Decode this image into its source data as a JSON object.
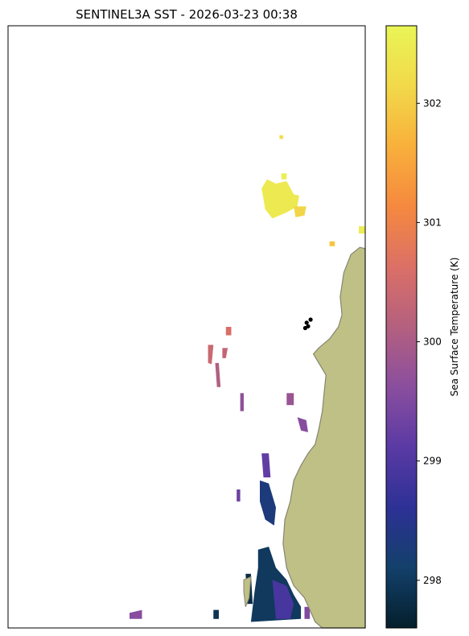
{
  "chart_data": {
    "type": "heatmap",
    "title": "SENTINEL3A SST - 2026-03-23 00:38",
    "colorbar": {
      "label": "Sea Surface Temperature (K)",
      "range": [
        297.6,
        302.65
      ],
      "ticks": [
        "298",
        "299",
        "300",
        "301",
        "302"
      ],
      "tick_values": [
        298,
        299,
        300,
        301,
        302
      ],
      "colormap": [
        "#041f2c",
        "#13406a",
        "#2d3196",
        "#5a3aa4",
        "#8a4e9e",
        "#b4607f",
        "#db7066",
        "#f5893f",
        "#f8b03b",
        "#f2d94a",
        "#e9f556"
      ]
    },
    "land_color": "#bfc085",
    "coast_color": "#858573",
    "marker_color": "#000000",
    "patches": [
      {
        "k": 302.45,
        "pts": [
          [
            0.71,
            0.27
          ],
          [
            0.725,
            0.255
          ],
          [
            0.75,
            0.262
          ],
          [
            0.78,
            0.258
          ],
          [
            0.8,
            0.28
          ],
          [
            0.815,
            0.282
          ],
          [
            0.81,
            0.3
          ],
          [
            0.78,
            0.31
          ],
          [
            0.74,
            0.32
          ],
          [
            0.72,
            0.305
          ]
        ]
      },
      {
        "k": 302.1,
        "pts": [
          [
            0.8,
            0.3
          ],
          [
            0.835,
            0.3
          ],
          [
            0.83,
            0.315
          ],
          [
            0.805,
            0.318
          ]
        ]
      },
      {
        "k": 302.55,
        "pts": [
          [
            0.765,
            0.245
          ],
          [
            0.78,
            0.245
          ],
          [
            0.78,
            0.255
          ],
          [
            0.765,
            0.255
          ]
        ]
      },
      {
        "k": 301.9,
        "pts": [
          [
            0.9,
            0.358
          ],
          [
            0.915,
            0.358
          ],
          [
            0.915,
            0.366
          ],
          [
            0.9,
            0.366
          ]
        ]
      },
      {
        "k": 302.5,
        "pts": [
          [
            0.982,
            0.333
          ],
          [
            1.0,
            0.333
          ],
          [
            1.0,
            0.345
          ],
          [
            0.982,
            0.345
          ]
        ]
      },
      {
        "k": 302.2,
        "pts": [
          [
            0.76,
            0.182
          ],
          [
            0.77,
            0.182
          ],
          [
            0.77,
            0.188
          ],
          [
            0.76,
            0.188
          ]
        ]
      },
      {
        "k": 300.6,
        "pts": [
          [
            0.61,
            0.5
          ],
          [
            0.625,
            0.5
          ],
          [
            0.625,
            0.514
          ],
          [
            0.61,
            0.514
          ]
        ]
      },
      {
        "k": 300.4,
        "pts": [
          [
            0.56,
            0.53
          ],
          [
            0.575,
            0.53
          ],
          [
            0.57,
            0.562
          ],
          [
            0.56,
            0.56
          ]
        ]
      },
      {
        "k": 300.3,
        "pts": [
          [
            0.6,
            0.535
          ],
          [
            0.615,
            0.535
          ],
          [
            0.61,
            0.552
          ],
          [
            0.6,
            0.552
          ]
        ]
      },
      {
        "k": 300.1,
        "pts": [
          [
            0.58,
            0.56
          ],
          [
            0.59,
            0.56
          ],
          [
            0.595,
            0.6
          ],
          [
            0.585,
            0.6
          ]
        ]
      },
      {
        "k": 299.8,
        "pts": [
          [
            0.78,
            0.61
          ],
          [
            0.8,
            0.61
          ],
          [
            0.8,
            0.63
          ],
          [
            0.78,
            0.63
          ]
        ]
      },
      {
        "k": 299.6,
        "pts": [
          [
            0.81,
            0.65
          ],
          [
            0.835,
            0.655
          ],
          [
            0.84,
            0.675
          ],
          [
            0.82,
            0.672
          ]
        ]
      },
      {
        "k": 299.7,
        "pts": [
          [
            0.65,
            0.61
          ],
          [
            0.66,
            0.61
          ],
          [
            0.66,
            0.64
          ],
          [
            0.65,
            0.64
          ]
        ]
      },
      {
        "k": 299.2,
        "pts": [
          [
            0.71,
            0.71
          ],
          [
            0.73,
            0.71
          ],
          [
            0.735,
            0.75
          ],
          [
            0.715,
            0.75
          ]
        ]
      },
      {
        "k": 298.3,
        "pts": [
          [
            0.705,
            0.755
          ],
          [
            0.73,
            0.76
          ],
          [
            0.75,
            0.8
          ],
          [
            0.745,
            0.83
          ],
          [
            0.72,
            0.82
          ],
          [
            0.705,
            0.79
          ]
        ]
      },
      {
        "k": 298.0,
        "pts": [
          [
            0.7,
            0.87
          ],
          [
            0.73,
            0.865
          ],
          [
            0.75,
            0.9
          ],
          [
            0.78,
            0.92
          ],
          [
            0.8,
            0.945
          ],
          [
            0.82,
            0.965
          ],
          [
            0.82,
            0.985
          ],
          [
            0.68,
            0.99
          ],
          [
            0.69,
            0.94
          ],
          [
            0.7,
            0.9
          ]
        ]
      },
      {
        "k": 298.9,
        "pts": [
          [
            0.74,
            0.92
          ],
          [
            0.78,
            0.93
          ],
          [
            0.8,
            0.96
          ],
          [
            0.79,
            0.985
          ],
          [
            0.75,
            0.985
          ]
        ]
      },
      {
        "k": 297.8,
        "pts": [
          [
            0.665,
            0.91
          ],
          [
            0.68,
            0.91
          ],
          [
            0.685,
            0.96
          ],
          [
            0.67,
            0.96
          ]
        ]
      },
      {
        "k": 299.5,
        "pts": [
          [
            0.83,
            0.965
          ],
          [
            0.845,
            0.965
          ],
          [
            0.845,
            0.985
          ],
          [
            0.83,
            0.985
          ]
        ]
      },
      {
        "k": 299.6,
        "pts": [
          [
            0.34,
            0.975
          ],
          [
            0.375,
            0.97
          ],
          [
            0.375,
            0.985
          ],
          [
            0.34,
            0.985
          ]
        ]
      },
      {
        "k": 297.9,
        "pts": [
          [
            0.575,
            0.97
          ],
          [
            0.59,
            0.97
          ],
          [
            0.59,
            0.985
          ],
          [
            0.575,
            0.985
          ]
        ]
      },
      {
        "k": 299.3,
        "pts": [
          [
            0.64,
            0.77
          ],
          [
            0.65,
            0.77
          ],
          [
            0.65,
            0.79
          ],
          [
            0.64,
            0.79
          ]
        ]
      }
    ],
    "land": [
      [
        1.0,
        0.37
      ],
      [
        0.985,
        0.368
      ],
      [
        0.96,
        0.38
      ],
      [
        0.94,
        0.41
      ],
      [
        0.93,
        0.45
      ],
      [
        0.935,
        0.48
      ],
      [
        0.925,
        0.5
      ],
      [
        0.9,
        0.52
      ],
      [
        0.87,
        0.535
      ],
      [
        0.855,
        0.545
      ],
      [
        0.87,
        0.56
      ],
      [
        0.89,
        0.58
      ],
      [
        0.885,
        0.61
      ],
      [
        0.88,
        0.64
      ],
      [
        0.87,
        0.67
      ],
      [
        0.86,
        0.695
      ],
      [
        0.84,
        0.71
      ],
      [
        0.82,
        0.73
      ],
      [
        0.8,
        0.755
      ],
      [
        0.79,
        0.79
      ],
      [
        0.775,
        0.82
      ],
      [
        0.77,
        0.86
      ],
      [
        0.78,
        0.9
      ],
      [
        0.8,
        0.93
      ],
      [
        0.83,
        0.95
      ],
      [
        0.86,
        0.99
      ],
      [
        0.88,
        1.0
      ],
      [
        1.0,
        1.0
      ]
    ],
    "island": [
      [
        0.66,
        0.92
      ],
      [
        0.68,
        0.915
      ],
      [
        0.675,
        0.95
      ],
      [
        0.665,
        0.965
      ],
      [
        0.66,
        0.94
      ]
    ],
    "markers": [
      [
        0.836,
        0.493
      ],
      [
        0.847,
        0.488
      ],
      [
        0.84,
        0.499
      ],
      [
        0.832,
        0.502
      ]
    ]
  }
}
